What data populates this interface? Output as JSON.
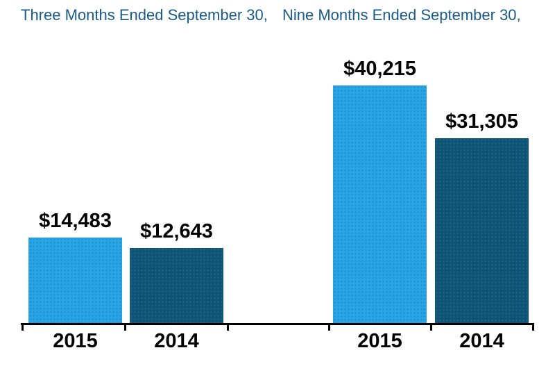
{
  "page": {
    "background_color": "#FFFFFF"
  },
  "chart_data": {
    "type": "bar",
    "title": "Three Months Ended September 30,  Nine Months Ended September 30,",
    "group_titles": [
      "Three Months Ended September 30,",
      "Nine Months Ended September 30,"
    ],
    "categories": [
      "2015",
      "2014",
      "2015",
      "2014"
    ],
    "series": [
      {
        "name": "2015",
        "color": "#2AA5E4",
        "values": [
          14483,
          40215
        ]
      },
      {
        "name": "2014",
        "color": "#0F5378",
        "values": [
          12643,
          31305
        ]
      }
    ],
    "bars": [
      {
        "group": "Three Months Ended September 30,",
        "category": "2015",
        "series": "2015",
        "value": 14483,
        "label": "$14,483"
      },
      {
        "group": "Three Months Ended September 30,",
        "category": "2014",
        "series": "2014",
        "value": 12643,
        "label": "$12,643"
      },
      {
        "group": "Nine Months Ended September 30,",
        "category": "2015",
        "series": "2015",
        "value": 40215,
        "label": "$40,215"
      },
      {
        "group": "Nine Months Ended September 30,",
        "category": "2014",
        "series": "2014",
        "value": 31305,
        "label": "$31,305"
      }
    ],
    "ylim": [
      0,
      43000
    ],
    "colors": {
      "series_2015": "#2AA5E4",
      "series_2014": "#0F5378",
      "title_text": "#1A5A8A",
      "value_labels": "#000000",
      "axis": "#000000"
    },
    "layout_hints": {
      "grid": false,
      "y_axis_visible": false,
      "legend": "none",
      "value_labels_position": "above-bar",
      "x_axis_ticks": "down, between category groups"
    }
  }
}
